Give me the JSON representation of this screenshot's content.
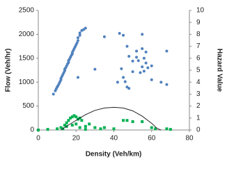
{
  "chart_data": {
    "type": "scatter",
    "x_label": "Density (Veh/km)",
    "y_label": "Flow (Veh/hr)",
    "y2_label": "Hazard Value",
    "xlim": [
      0,
      80
    ],
    "xticks": [
      0,
      20,
      40,
      60,
      80
    ],
    "ylim": [
      0,
      2500
    ],
    "yticks": [
      0,
      500,
      1000,
      1500,
      2000,
      2500
    ],
    "y2lim": [
      0,
      10
    ],
    "y2ticks": [
      0,
      1,
      2,
      3,
      4,
      5,
      6,
      7,
      8,
      9,
      10
    ],
    "series": [
      {
        "color": "#4f81bd",
        "marker": "circle",
        "x": [
          8,
          9,
          9.5,
          10,
          10.5,
          11,
          11.5,
          12,
          12,
          12.5,
          13,
          13.5,
          14,
          14,
          14.5,
          15,
          15.5,
          16,
          16,
          16.5,
          17,
          17.5,
          18,
          18,
          18.5,
          19,
          19.5,
          20,
          20.5,
          21,
          21,
          22,
          22,
          23,
          24,
          25,
          21,
          30,
          35,
          43,
          45,
          47,
          48,
          50,
          52,
          53,
          55,
          56,
          56,
          58,
          54,
          45,
          47,
          48,
          42,
          50,
          55,
          60,
          65,
          68,
          68,
          55,
          57,
          44,
          46,
          60,
          52,
          57
        ],
        "values": [
          750,
          820,
          860,
          900,
          930,
          970,
          1010,
          1050,
          1080,
          1120,
          1160,
          1200,
          1240,
          1270,
          1300,
          1340,
          1380,
          1410,
          1450,
          1480,
          1520,
          1560,
          1590,
          1620,
          1660,
          1700,
          1740,
          1780,
          1820,
          1870,
          1930,
          1980,
          2030,
          2080,
          2100,
          2130,
          1100,
          1270,
          1950,
          2020,
          1980,
          1750,
          1540,
          1440,
          1650,
          1450,
          1700,
          1500,
          1230,
          1300,
          1200,
          1100,
          900,
          870,
          1000,
          1220,
          1320,
          1050,
          1000,
          1650,
          950,
          2000,
          1400,
          1280,
          1010,
          1340,
          1520,
          1630
        ]
      },
      {
        "color": "#00b050",
        "marker": "square",
        "axis": "y2",
        "x": [
          10,
          12,
          14,
          15,
          16,
          17,
          18,
          19,
          20,
          21,
          22,
          15,
          13,
          25,
          27,
          30,
          33,
          20,
          18,
          22,
          45,
          47,
          50,
          55,
          60,
          62,
          68,
          70,
          5,
          0,
          35,
          40,
          23,
          25
        ],
        "values": [
          0.1,
          0.2,
          0.4,
          0.6,
          0.8,
          1,
          1.1,
          1.2,
          1.1,
          0.9,
          1,
          0.3,
          0.1,
          0.3,
          0.5,
          0.2,
          0.1,
          0.5,
          0.4,
          0.2,
          0.8,
          0.8,
          0.7,
          0.7,
          0.2,
          0.1,
          0.1,
          0.05,
          0.05,
          0,
          0.2,
          0.1,
          0.8,
          0.05
        ]
      },
      {
        "color": "#222222",
        "marker": "line",
        "x": [
          12,
          15,
          20,
          25,
          30,
          35,
          40,
          45,
          50,
          55,
          60,
          63,
          65
        ],
        "values": [
          0,
          80,
          200,
          320,
          410,
          460,
          475,
          460,
          400,
          290,
          140,
          30,
          0
        ]
      }
    ]
  }
}
